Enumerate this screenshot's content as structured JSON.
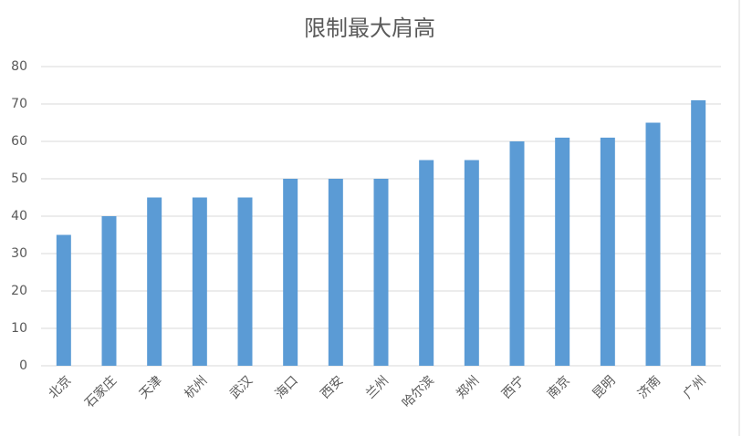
{
  "chart_data": {
    "type": "bar",
    "title": "限制最大肩高",
    "categories": [
      "北京",
      "石家庄",
      "天津",
      "杭州",
      "武汉",
      "海口",
      "西安",
      "兰州",
      "哈尔滨",
      "郑州",
      "西宁",
      "南京",
      "昆明",
      "济南",
      "广州"
    ],
    "values": [
      35,
      40,
      45,
      45,
      45,
      50,
      50,
      50,
      55,
      55,
      60,
      61,
      61,
      65,
      71
    ],
    "color": "#5b9bd5",
    "ylim": [
      0,
      80
    ],
    "yticks": [
      0,
      10,
      20,
      30,
      40,
      50,
      60,
      70,
      80
    ],
    "grid": true
  }
}
